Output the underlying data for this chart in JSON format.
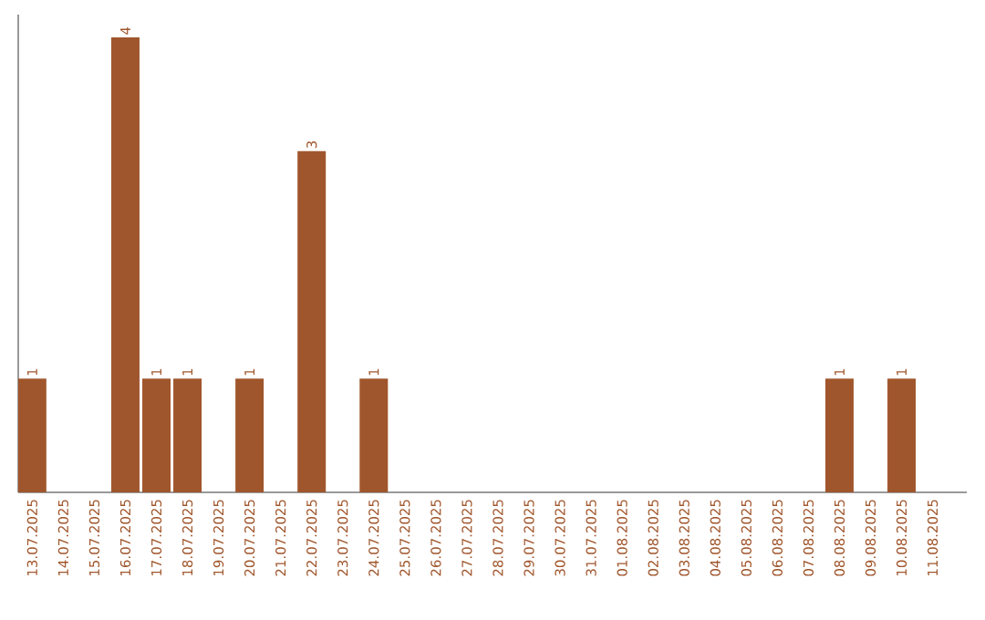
{
  "chart_data": {
    "type": "bar",
    "color": "#a0562c",
    "categories": [
      "13.07.2025",
      "14.07.2025",
      "15.07.2025",
      "16.07.2025",
      "17.07.2025",
      "18.07.2025",
      "19.07.2025",
      "20.07.2025",
      "21.07.2025",
      "22.07.2025",
      "23.07.2025",
      "24.07.2025",
      "25.07.2025",
      "26.07.2025",
      "27.07.2025",
      "28.07.2025",
      "29.07.2025",
      "30.07.2025",
      "31.07.2025",
      "01.08.2025",
      "02.08.2025",
      "03.08.2025",
      "04.08.2025",
      "05.08.2025",
      "06.08.2025",
      "07.08.2025",
      "08.08.2025",
      "09.08.2025",
      "10.08.2025",
      "11.08.2025"
    ],
    "values": [
      1,
      0,
      0,
      4,
      1,
      1,
      0,
      1,
      0,
      3,
      0,
      1,
      0,
      0,
      0,
      0,
      0,
      0,
      0,
      0,
      0,
      0,
      0,
      0,
      0,
      0,
      1,
      0,
      1,
      0
    ],
    "value_labels": [
      "1",
      null,
      null,
      "4",
      "1",
      "1",
      null,
      "1",
      null,
      "3",
      null,
      "1",
      null,
      null,
      null,
      null,
      null,
      null,
      null,
      null,
      null,
      null,
      null,
      null,
      null,
      null,
      "1",
      null,
      "1",
      null
    ],
    "tick_labels": "x",
    "grid": false
  }
}
